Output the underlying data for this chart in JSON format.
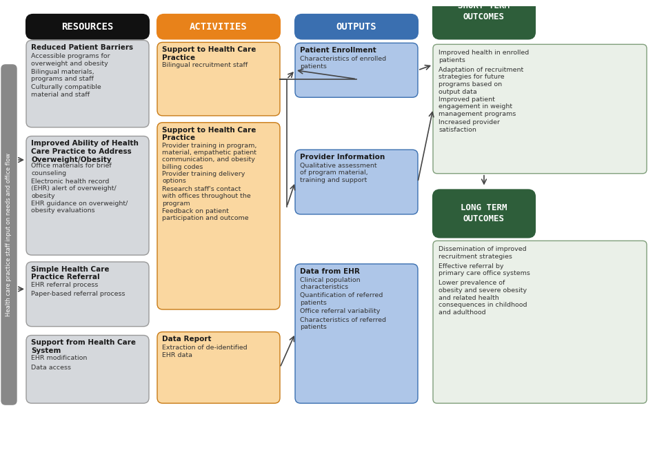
{
  "title_col1": "RESOURCES",
  "title_col2": "ACTIVITIES",
  "title_col3": "OUTPUTS",
  "title_col4": "SHORT TERM\nOUTCOMES",
  "title_col4b": "LONG TERM\nOUTCOMES",
  "color_resources_header": "#111111",
  "color_activities_header": "#E8821A",
  "color_outputs_header": "#3A6FB0",
  "color_outcomes_header": "#2E5E3A",
  "color_resources_box": "#D5D8DC",
  "color_activities_box": "#FAD7A0",
  "color_outputs_box": "#AEC6E8",
  "color_outcomes_short_box": "#7F9E7A",
  "color_outcomes_long_box": "#7F9E7A",
  "color_outcomes_text_box": "#E8F3E8",
  "color_sidebar": "#808080",
  "sidebar_text": "Health care practice staff input on needs and office flow",
  "resources": [
    {
      "title": "Reduced Patient Barriers",
      "items": [
        "Accessible programs for\noverweight and obesity",
        "Bilingual materials,\nprograms and staff",
        "Culturally compatible\nmaterial and staff"
      ]
    },
    {
      "title": "Improved Ability of Health\nCare Practice to Address\nOverweight/Obesity",
      "items": [
        "Office materials for brief\ncounseling",
        "Electronic health record\n(EHR) alert of overweight/\nobesity",
        "EHR guidance on overweight/\nobesity evaluations"
      ]
    },
    {
      "title": "Simple Health Care\nPractice Referral",
      "items": [
        "EHR referral process",
        "Paper-based referral process"
      ]
    },
    {
      "title": "Support from Health Care\nSystem",
      "items": [
        "EHR modification",
        "Data access"
      ]
    }
  ],
  "activities": [
    {
      "title": "Support to Health Care\nPractice",
      "items": [
        "Bilingual recruitment staff"
      ]
    },
    {
      "title": "Support to Health Care\nPractice",
      "items": [
        "Provider training in program,\nmaterial, empathetic patient\ncommunication, and obesity\nbilling codes",
        "Provider training delivery\noptions",
        "Research staff's contact\nwith offices throughout the\nprogram",
        "Feedback on patient\nparticipation and outcome"
      ]
    },
    {
      "title": "Data Report",
      "items": [
        "Extraction of de-identified\nEHR data"
      ]
    }
  ],
  "outputs": [
    {
      "title": "Patient Enrollment",
      "items": [
        "Characteristics of enrolled\npatients"
      ]
    },
    {
      "title": "Provider Information",
      "items": [
        "Qualitative assessment\nof program material,\ntraining and support"
      ]
    },
    {
      "title": "Data from EHR",
      "items": [
        "Clinical population\ncharacteristics",
        "Quantification of referred\npatients",
        "Office referral variability",
        "Characteristics of referred\npatients"
      ]
    }
  ],
  "short_term_items": [
    "Improved health in enrolled\npatients",
    "Adaptation of recruitment\nstrategies for future\nprograms based on\noutput data",
    "Improved patient\nengagement in weight\nmanagement programs",
    "Increased provider\nsatisfaction"
  ],
  "long_term_items": [
    "Dissemination of improved\nrecruitment strategies",
    "Effective referral by\nprimary care office systems",
    "Lower prevalence of\nobesity and severe obesity\nand related health\nconsequences in childhood\nand adulthood"
  ]
}
